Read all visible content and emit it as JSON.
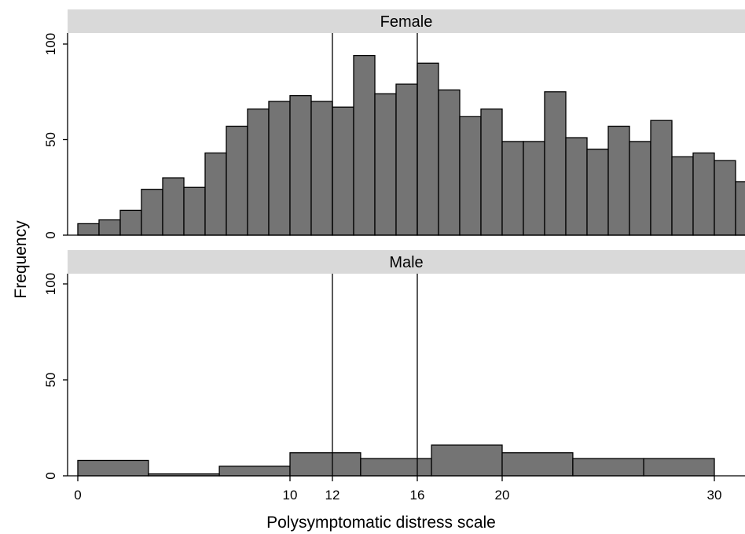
{
  "chart_data": {
    "type": "bar",
    "xlabel": "Polysymptomatic distress scale",
    "ylabel": "Frequency",
    "x_ticks": [
      0,
      10,
      12,
      16,
      20,
      30
    ],
    "y_ticks": [
      0,
      50,
      100
    ],
    "ylim": [
      0,
      100
    ],
    "xlim": [
      0,
      31
    ],
    "reference_lines": [
      12,
      16
    ],
    "grid": false,
    "bar_color": "#747474",
    "panels": [
      {
        "name": "Female",
        "bins": [
          {
            "x0": 0,
            "x1": 1,
            "value": 6
          },
          {
            "x0": 1,
            "x1": 2,
            "value": 8
          },
          {
            "x0": 2,
            "x1": 3,
            "value": 13
          },
          {
            "x0": 3,
            "x1": 4,
            "value": 24
          },
          {
            "x0": 4,
            "x1": 5,
            "value": 30
          },
          {
            "x0": 5,
            "x1": 6,
            "value": 25
          },
          {
            "x0": 6,
            "x1": 7,
            "value": 43
          },
          {
            "x0": 7,
            "x1": 8,
            "value": 57
          },
          {
            "x0": 8,
            "x1": 9,
            "value": 66
          },
          {
            "x0": 9,
            "x1": 10,
            "value": 70
          },
          {
            "x0": 10,
            "x1": 11,
            "value": 73
          },
          {
            "x0": 11,
            "x1": 12,
            "value": 70
          },
          {
            "x0": 12,
            "x1": 13,
            "value": 67
          },
          {
            "x0": 13,
            "x1": 14,
            "value": 94
          },
          {
            "x0": 14,
            "x1": 15,
            "value": 74
          },
          {
            "x0": 15,
            "x1": 16,
            "value": 79
          },
          {
            "x0": 16,
            "x1": 17,
            "value": 90
          },
          {
            "x0": 17,
            "x1": 18,
            "value": 76
          },
          {
            "x0": 18,
            "x1": 19,
            "value": 62
          },
          {
            "x0": 19,
            "x1": 20,
            "value": 66
          },
          {
            "x0": 20,
            "x1": 21,
            "value": 49
          },
          {
            "x0": 21,
            "x1": 22,
            "value": 49
          },
          {
            "x0": 22,
            "x1": 23,
            "value": 75
          },
          {
            "x0": 23,
            "x1": 24,
            "value": 51
          },
          {
            "x0": 24,
            "x1": 25,
            "value": 45
          },
          {
            "x0": 25,
            "x1": 26,
            "value": 57
          },
          {
            "x0": 26,
            "x1": 27,
            "value": 49
          },
          {
            "x0": 27,
            "x1": 28,
            "value": 60
          },
          {
            "x0": 28,
            "x1": 29,
            "value": 41
          },
          {
            "x0": 29,
            "x1": 30,
            "value": 43
          },
          {
            "x0": 30,
            "x1": 31,
            "value": 39
          },
          {
            "x0": 31,
            "x1": 32,
            "value": 28
          }
        ]
      },
      {
        "name": "Male",
        "bins": [
          {
            "x0": 0,
            "x1": 3.33,
            "value": 8
          },
          {
            "x0": 3.33,
            "x1": 6.67,
            "value": 1
          },
          {
            "x0": 6.67,
            "x1": 10,
            "value": 5
          },
          {
            "x0": 10,
            "x1": 13.33,
            "value": 12
          },
          {
            "x0": 13.33,
            "x1": 16.67,
            "value": 9
          },
          {
            "x0": 16.67,
            "x1": 20,
            "value": 16
          },
          {
            "x0": 20,
            "x1": 23.33,
            "value": 12
          },
          {
            "x0": 23.33,
            "x1": 26.67,
            "value": 9
          },
          {
            "x0": 26.67,
            "x1": 30,
            "value": 9
          }
        ]
      }
    ]
  }
}
